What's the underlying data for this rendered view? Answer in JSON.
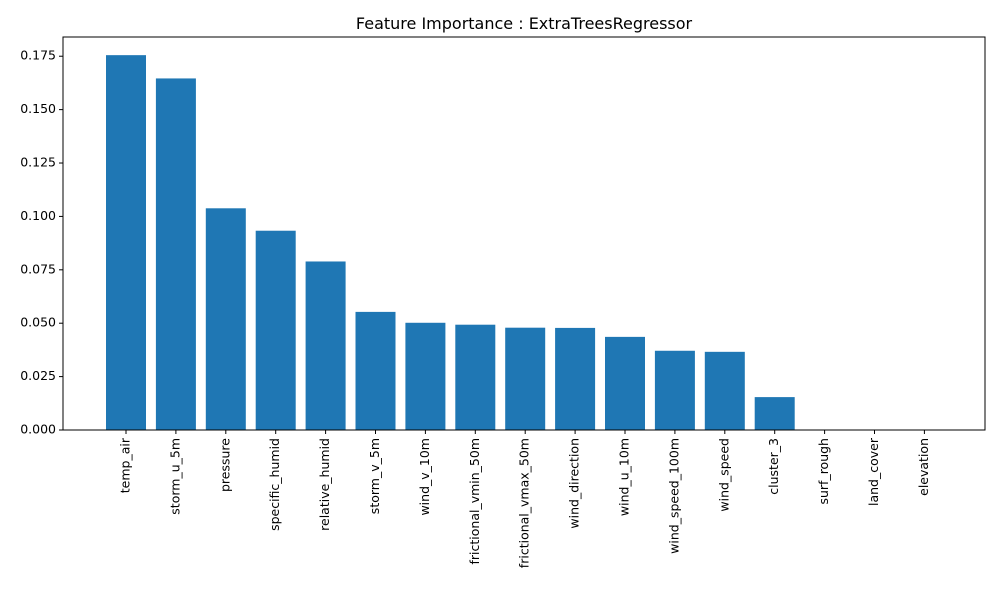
{
  "chart_data": {
    "type": "bar",
    "title": "Feature Importance : ExtraTreesRegressor",
    "xlabel": "",
    "ylabel": "",
    "categories": [
      "temp_air",
      "storm_u_5m",
      "pressure",
      "specific_humid",
      "relative_humid",
      "storm_v_5m",
      "wind_v_10m",
      "frictional_vmin_50m",
      "frictional_vmax_50m",
      "wind_direction",
      "wind_u_10m",
      "wind_speed_100m",
      "wind_speed",
      "cluster_3",
      "surf_rough",
      "land_cover",
      "elevation"
    ],
    "values": [
      0.1755,
      0.1646,
      0.1038,
      0.0933,
      0.0789,
      0.0553,
      0.0502,
      0.0493,
      0.0479,
      0.0478,
      0.0436,
      0.0371,
      0.0366,
      0.0154,
      0.0,
      0.0,
      0.0
    ],
    "ylim": [
      0,
      0.184
    ],
    "yticks": [
      0.0,
      0.025,
      0.05,
      0.075,
      0.1,
      0.125,
      0.15,
      0.175
    ],
    "ytick_labels": [
      "0.000",
      "0.025",
      "0.050",
      "0.075",
      "0.100",
      "0.125",
      "0.150",
      "0.175"
    ],
    "bar_color": "#1f77b4",
    "grid": false,
    "legend": "none"
  }
}
